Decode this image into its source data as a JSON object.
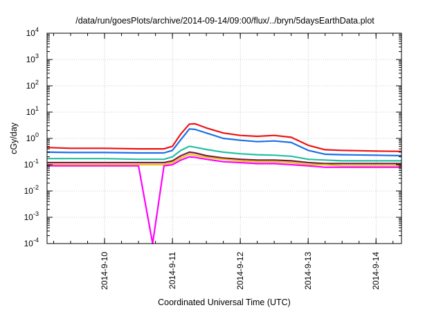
{
  "chart_data": {
    "type": "line",
    "title": "/data/run/goesPlots/archive/2014-09-14/09:00/flux/../bryn/5daysEarthData.plot",
    "xlabel": "Coordinated Universal Time (UTC)",
    "ylabel": "cGy/day",
    "yscale": "log",
    "ylim": [
      0.0001,
      10000
    ],
    "xlim": [
      "2014-09-09T03:40",
      "2014-09-14T09:00"
    ],
    "grid": true,
    "legend": "none",
    "y_ticks": [
      {
        "value": 0.0001,
        "base": "10",
        "exp": "-4"
      },
      {
        "value": 0.001,
        "base": "10",
        "exp": "-3"
      },
      {
        "value": 0.01,
        "base": "10",
        "exp": "-2"
      },
      {
        "value": 0.1,
        "base": "10",
        "exp": "-1"
      },
      {
        "value": 1,
        "base": "10",
        "exp": "0"
      },
      {
        "value": 10,
        "base": "10",
        "exp": "1"
      },
      {
        "value": 100,
        "base": "10",
        "exp": "2"
      },
      {
        "value": 1000,
        "base": "10",
        "exp": "3"
      },
      {
        "value": 10000,
        "base": "10",
        "exp": "4"
      }
    ],
    "x_ticks": [
      {
        "value": "2014-09-10T00:00",
        "label": "2014-9-10"
      },
      {
        "value": "2014-09-11T00:00",
        "label": "2014-9-11"
      },
      {
        "value": "2014-09-12T00:00",
        "label": "2014-9-12"
      },
      {
        "value": "2014-09-13T00:00",
        "label": "2014-9-13"
      },
      {
        "value": "2014-09-14T00:00",
        "label": "2014-9-14"
      }
    ],
    "x": [
      "2014-09-09T03:40",
      "2014-09-09T12:00",
      "2014-09-10T00:00",
      "2014-09-10T12:00",
      "2014-09-10T17:00",
      "2014-09-10T21:00",
      "2014-09-11T00:00",
      "2014-09-11T03:00",
      "2014-09-11T06:00",
      "2014-09-11T08:00",
      "2014-09-11T12:00",
      "2014-09-11T18:00",
      "2014-09-12T00:00",
      "2014-09-12T06:00",
      "2014-09-12T12:00",
      "2014-09-12T18:00",
      "2014-09-13T00:00",
      "2014-09-13T06:00",
      "2014-09-13T12:00",
      "2014-09-14T00:00",
      "2014-09-14T09:00"
    ],
    "series": [
      {
        "color": "#ee1111",
        "values": [
          0.45,
          0.42,
          0.42,
          0.4,
          0.4,
          0.4,
          0.5,
          1.5,
          3.5,
          3.6,
          2.5,
          1.6,
          1.3,
          1.2,
          1.3,
          1.1,
          0.55,
          0.37,
          0.35,
          0.33,
          0.32
        ]
      },
      {
        "color": "#1a6fe8",
        "values": [
          0.3,
          0.29,
          0.29,
          0.28,
          0.28,
          0.28,
          0.35,
          0.9,
          2.3,
          2.2,
          1.6,
          1.0,
          0.85,
          0.75,
          0.8,
          0.7,
          0.35,
          0.25,
          0.24,
          0.23,
          0.22
        ]
      },
      {
        "color": "#22c0a0",
        "values": [
          0.17,
          0.17,
          0.17,
          0.16,
          0.16,
          0.16,
          0.2,
          0.35,
          0.5,
          0.46,
          0.38,
          0.3,
          0.26,
          0.24,
          0.23,
          0.21,
          0.16,
          0.15,
          0.14,
          0.14,
          0.14
        ]
      },
      {
        "color": "#7a1a3a",
        "values": [
          0.12,
          0.12,
          0.12,
          0.12,
          0.12,
          0.12,
          0.14,
          0.22,
          0.3,
          0.28,
          0.22,
          0.18,
          0.16,
          0.15,
          0.15,
          0.14,
          0.12,
          0.11,
          0.11,
          0.11,
          0.11
        ]
      },
      {
        "color": "#e8c020",
        "values": [
          0.1,
          0.1,
          0.1,
          0.1,
          0.1,
          0.1,
          0.12,
          0.18,
          0.25,
          0.23,
          0.19,
          0.16,
          0.14,
          0.13,
          0.13,
          0.12,
          0.1,
          0.1,
          0.09,
          0.09,
          0.09
        ]
      },
      {
        "color": "#ff00ff",
        "values": [
          0.09,
          0.09,
          0.09,
          0.09,
          0.0001,
          0.09,
          0.1,
          0.15,
          0.2,
          0.19,
          0.16,
          0.13,
          0.12,
          0.11,
          0.11,
          0.1,
          0.09,
          0.08,
          0.08,
          0.08,
          0.08
        ]
      }
    ]
  }
}
